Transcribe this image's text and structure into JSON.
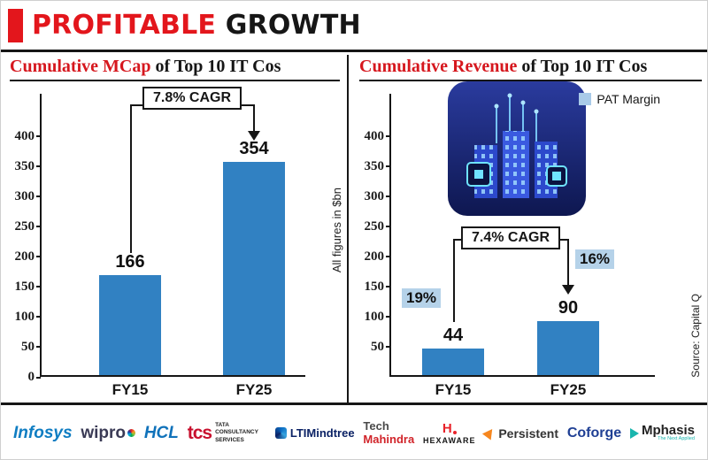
{
  "header": {
    "title_red": "PROFITABLE",
    "title_black": " GROWTH"
  },
  "mcap_panel": {
    "heading_red": "Cumulative MCap",
    "heading_black": " of Top 10 IT Cos",
    "cagr": "7.8% CAGR",
    "side_note": "All figures in $bn"
  },
  "revenue_panel": {
    "heading_red": "Cumulative Revenue",
    "heading_black": " of Top 10 IT Cos",
    "legend": "PAT Margin",
    "cagr": "7.4% CAGR",
    "pat_fy15": "19%",
    "pat_fy25": "16%",
    "source": "Source: Capital Q"
  },
  "chart_data": [
    {
      "type": "bar",
      "title": "Cumulative MCap of Top 10 IT Cos",
      "categories": [
        "FY15",
        "FY25"
      ],
      "values": [
        166,
        354
      ],
      "unit": "$bn",
      "annotation": "7.8% CAGR",
      "ticks": [
        0,
        50,
        100,
        150,
        200,
        250,
        300,
        350,
        400
      ],
      "ylim": [
        0,
        400
      ],
      "axis_max": 470,
      "bar_color": "#3181c2",
      "legend_position": "none",
      "grid": false
    },
    {
      "type": "bar",
      "title": "Cumulative Revenue of Top 10 IT Cos",
      "categories": [
        "FY15",
        "FY25"
      ],
      "values": [
        44,
        90
      ],
      "unit": "$bn",
      "annotation": "7.4% CAGR",
      "pat_margin": {
        "FY15": "19%",
        "FY25": "16%"
      },
      "legend": "PAT Margin",
      "source": "Source: Capital Q",
      "ticks": [
        50,
        100,
        150,
        200,
        250,
        300,
        350,
        400
      ],
      "ylim": [
        0,
        400
      ],
      "axis_max": 470,
      "bar_color": "#3181c2",
      "legend_position": "top-right",
      "grid": false
    }
  ],
  "logos": [
    {
      "name": "Infosys",
      "text": "Infosys"
    },
    {
      "name": "Wipro",
      "text": "wipro"
    },
    {
      "name": "HCL",
      "text": "HCL"
    },
    {
      "name": "TCS",
      "text": "tcs",
      "sub": "TATA CONSULTANCY SERVICES"
    },
    {
      "name": "LTIMindtree",
      "text": "LTIMindtree"
    },
    {
      "name": "Tech Mahindra",
      "text_top": "Tech",
      "text_bottom": "Mahindra"
    },
    {
      "name": "Hexaware",
      "mark": "H",
      "text": "HEXAWARE"
    },
    {
      "name": "Persistent",
      "text": "Persistent"
    },
    {
      "name": "Coforge",
      "text": "Coforge"
    },
    {
      "name": "Mphasis",
      "text": "Mphasis",
      "sub": "The Next Applied"
    }
  ]
}
